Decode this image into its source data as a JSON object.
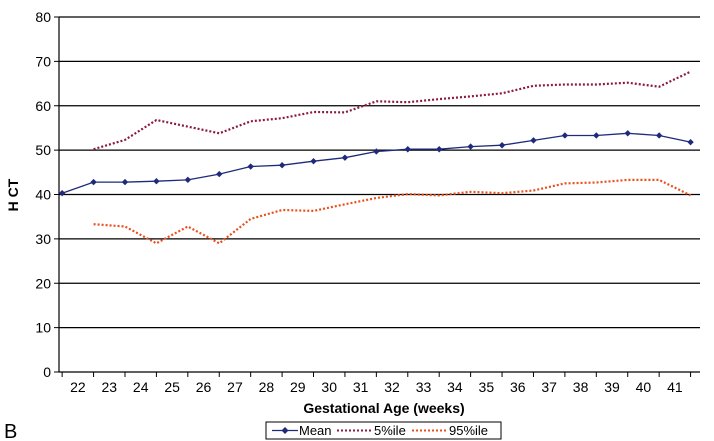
{
  "panel_label": "B",
  "chart_data": {
    "type": "line",
    "xlabel": "Gestational Age (weeks)",
    "ylabel": "H CT",
    "ylim": [
      0,
      80
    ],
    "yticks": [
      0,
      10,
      20,
      30,
      40,
      50,
      60,
      70,
      80
    ],
    "xticks": [
      22,
      23,
      24,
      25,
      26,
      27,
      28,
      29,
      30,
      31,
      32,
      33,
      34,
      35,
      36,
      37,
      38,
      39,
      40,
      41
    ],
    "xlim": [
      21.4,
      41.8
    ],
    "grid": "horizontal",
    "legend_position": "bottom",
    "series": [
      {
        "name": "Mean",
        "color": "#1f2a7a",
        "style": "solid-diamond",
        "x": [
          21.5,
          22.5,
          23.5,
          24.5,
          25.5,
          26.5,
          27.5,
          28.5,
          29.5,
          30.5,
          31.5,
          32.5,
          33.5,
          34.5,
          35.5,
          36.5,
          37.5,
          38.5,
          39.5,
          40.5,
          41.5
        ],
        "y": [
          40.3,
          42.8,
          42.8,
          43,
          43.3,
          44.6,
          46.3,
          46.6,
          47.5,
          48.3,
          49.7,
          50.2,
          50.2,
          50.8,
          51.1,
          52.2,
          53.3,
          53.3,
          53.8,
          53.3,
          51.8
        ]
      },
      {
        "name": "5%ile",
        "color": "#8b1a3c",
        "style": "dotted",
        "x": [
          22.5,
          23.5,
          24.5,
          25.5,
          26.5,
          27.5,
          28.5,
          29.5,
          30.5,
          31.5,
          32.5,
          33.5,
          34.5,
          35.5,
          36.5,
          37.5,
          38.5,
          39.5,
          40.5,
          41.5
        ],
        "y": [
          50.2,
          52.3,
          56.8,
          55.3,
          53.8,
          56.5,
          57.2,
          58.6,
          58.5,
          61,
          60.8,
          61.5,
          62.1,
          62.8,
          64.5,
          64.8,
          64.8,
          65.2,
          64.3,
          67.7
        ]
      },
      {
        "name": "95%ile",
        "color": "#e8501e",
        "style": "dotted",
        "x": [
          22.5,
          23.5,
          24.5,
          25.5,
          26.5,
          27.5,
          28.5,
          29.5,
          30.5,
          31.5,
          32.5,
          33.5,
          34.5,
          35.5,
          36.5,
          37.5,
          38.5,
          39.5,
          40.5,
          41.5
        ],
        "y": [
          33.3,
          32.8,
          29,
          32.8,
          29,
          34.5,
          36.5,
          36.3,
          37.8,
          39.2,
          40.1,
          39.8,
          40.6,
          40.3,
          40.9,
          42.5,
          42.7,
          43.3,
          43.3,
          39.8
        ]
      }
    ]
  }
}
